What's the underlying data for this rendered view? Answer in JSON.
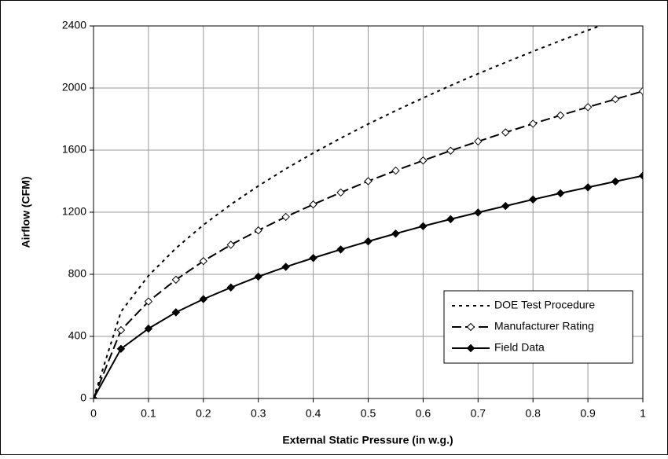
{
  "chart_data": {
    "type": "line",
    "x_label": "External Static Pressure (in w.g.)",
    "y_label": "Airflow (CFM)",
    "x": [
      0,
      0.05,
      0.1,
      0.15,
      0.2,
      0.25,
      0.3,
      0.35,
      0.4,
      0.45,
      0.5,
      0.55,
      0.6,
      0.65,
      0.7,
      0.75,
      0.8,
      0.85,
      0.9,
      0.95,
      1
    ],
    "series": [
      {
        "name": "DOE Test Procedure",
        "color": "#000000",
        "dash": "4,5",
        "marker": "none",
        "values": [
          0,
          559,
          791,
          968,
          1118,
          1250,
          1369,
          1479,
          1581,
          1677,
          1768,
          1854,
          1936,
          2016,
          2092,
          2165,
          2236,
          2305,
          2372,
          2437,
          2500
        ]
      },
      {
        "name": "Manufacturer Rating",
        "color": "#000000",
        "dash": "12,5",
        "marker": "open-diamond",
        "values": [
          0,
          440,
          625,
          765,
          885,
          990,
          1083,
          1170,
          1250,
          1327,
          1400,
          1468,
          1533,
          1596,
          1656,
          1714,
          1770,
          1824,
          1877,
          1928,
          1980
        ]
      },
      {
        "name": "Field Data",
        "color": "#000000",
        "dash": "none",
        "marker": "filled-diamond",
        "values": [
          0,
          320,
          450,
          555,
          640,
          715,
          785,
          848,
          905,
          960,
          1012,
          1062,
          1110,
          1155,
          1198,
          1240,
          1282,
          1322,
          1360,
          1398,
          1435
        ]
      }
    ],
    "xlim": [
      0,
      1
    ],
    "xticks": [
      0,
      0.1,
      0.2,
      0.3,
      0.4,
      0.5,
      0.6,
      0.7,
      0.8,
      0.9,
      1
    ],
    "ylim": [
      0,
      2400
    ],
    "yticks": [
      0,
      400,
      800,
      1200,
      1600,
      2000,
      2400
    ],
    "grid": true,
    "legend": "lower-right"
  }
}
